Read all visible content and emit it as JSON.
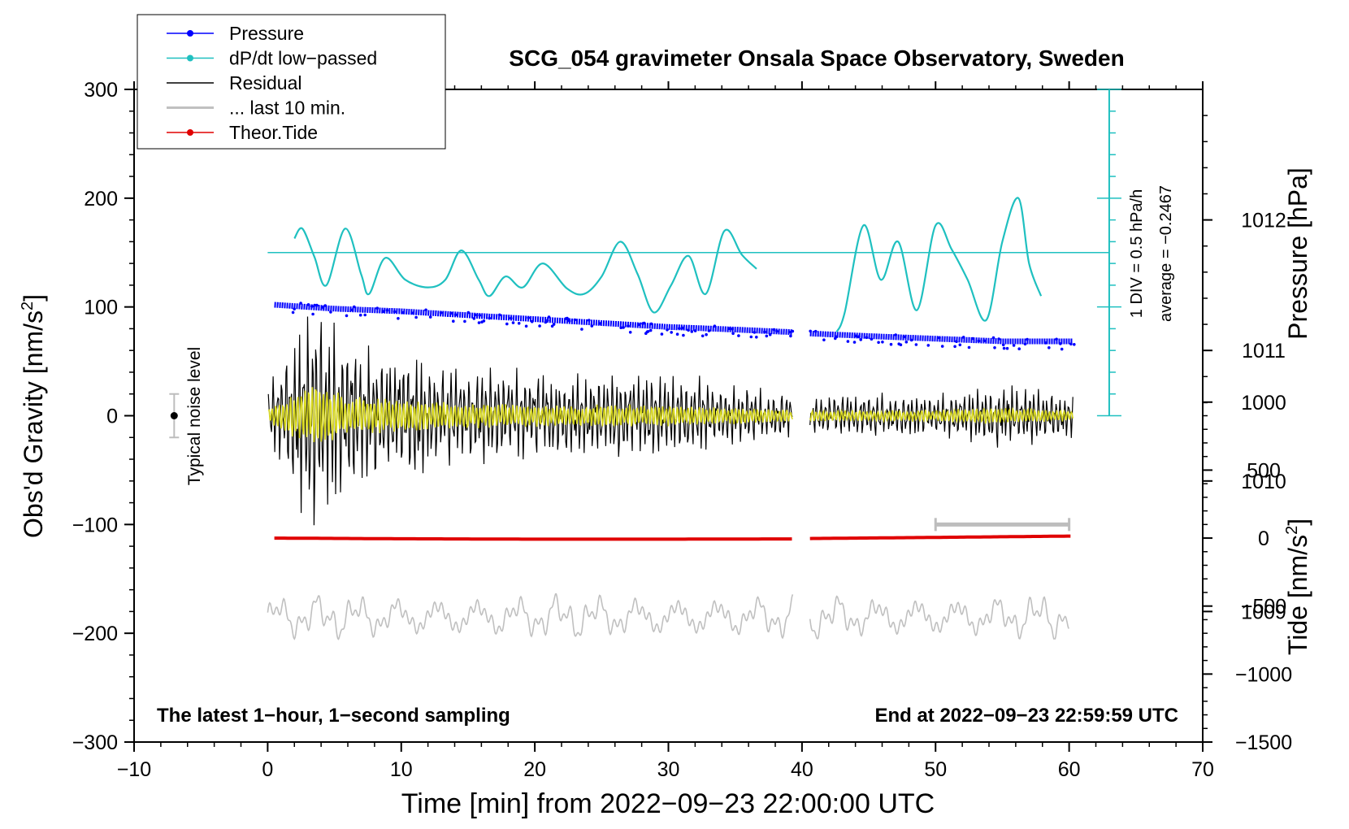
{
  "chart_data": {
    "type": "line",
    "title": "SCG_054 gravimeter Onsala Space Observatory, Sweden",
    "xlabel": "Time [min] from 2022−09−23 22:00:00 UTC",
    "ylabel_left": "Obs'd Gravity [nm/s",
    "ylabel_left_sup": "2",
    "ylabel_left_end": "]",
    "ylabel_pressure": "Pressure [hPa]",
    "ylabel_tide": "Tide [nm/s",
    "ylabel_tide_sup": "2",
    "ylabel_tide_end": "]",
    "xlim": [
      -10,
      70
    ],
    "ylim": [
      -300,
      300
    ],
    "pressure_axis": {
      "range": [
        1008,
        1013
      ],
      "ticks": [
        "1009",
        "1010",
        "1011",
        "1012"
      ],
      "tick_values": [
        1009,
        1010,
        1011,
        1012
      ]
    },
    "tide_axis": {
      "range": [
        -1500,
        3300
      ],
      "ticks": [
        "−1500",
        "−1000",
        "−500",
        "0",
        "500",
        "1000"
      ],
      "tick_values": [
        -1500,
        -1000,
        -500,
        0,
        500,
        1000
      ]
    },
    "x_ticks": [
      "−10",
      "0",
      "10",
      "20",
      "30",
      "40",
      "50",
      "60",
      "70"
    ],
    "x_tick_values": [
      -10,
      0,
      10,
      20,
      30,
      40,
      50,
      60,
      70
    ],
    "y_ticks": [
      "−300",
      "−200",
      "−100",
      "0",
      "100",
      "200",
      "300"
    ],
    "y_tick_values": [
      -300,
      -200,
      -100,
      0,
      100,
      200,
      300
    ],
    "legend": [
      {
        "label": "Pressure",
        "color": "#0000ff",
        "marker": true
      },
      {
        "label": "dP/dt low−passed",
        "color": "#1fc0c0",
        "marker": true
      },
      {
        "label": "Residual",
        "color": "#000000",
        "marker": false
      },
      {
        "label": "... last 10 min.",
        "color": "#c0c0c0",
        "marker": false
      },
      {
        "label": "Theor.Tide",
        "color": "#e00000",
        "marker": true
      }
    ],
    "annotations": {
      "noise": "Typical noise level",
      "bottom_left": "The latest 1−hour, 1−second sampling",
      "bottom_right": "End at 2022−09−23 22:59:59 UTC",
      "div_label": "1 DIV = 0.5 hPa/h",
      "average_label": "average = −0.2467"
    },
    "noise_level": {
      "x": -7,
      "value": 0,
      "range": 20
    },
    "last10_marker": {
      "x_start": 50,
      "x_end": 60,
      "value": -100
    },
    "dpdt_baseline": 150,
    "series": [
      {
        "name": "Pressure",
        "units": "hPa",
        "color": "#0000ff",
        "segments": [
          {
            "x": [
              0.5,
              5,
              10,
              15,
              20,
              25,
              30,
              35,
              39.3
            ],
            "values": [
              1011.35,
              1011.32,
              1011.3,
              1011.27,
              1011.24,
              1011.21,
              1011.18,
              1011.16,
              1011.14
            ]
          },
          {
            "x": [
              40.6,
              45,
              50,
              55,
              60.3
            ],
            "values": [
              1011.13,
              1011.11,
              1011.09,
              1011.07,
              1011.07
            ]
          }
        ]
      },
      {
        "name": "dP/dt low-passed",
        "units": "nm/s2 (display)",
        "color": "#1fc0c0",
        "segments": [
          {
            "x": [
              2,
              2.6,
              3.5,
              4.4,
              5.8,
              7.0,
              7.6,
              8.8,
              10.3,
              12.0,
              13.3,
              14.5,
              15.8,
              16.6,
              17.8,
              19.1,
              20.6,
              22.4,
              23.7,
              25.0,
              26.4,
              27.7,
              28.9,
              30.2,
              31.5,
              32.8,
              34.2,
              35.5,
              36.6
            ],
            "values": [
              163,
              172,
              146,
              120,
              172,
              130,
              112,
              145,
              125,
              118,
              125,
              152,
              125,
              110,
              128,
              118,
              140,
              117,
              112,
              128,
              160,
              130,
              95,
              120,
              147,
              112,
              170,
              148,
              135
            ]
          },
          {
            "x": [
              42.6,
              43.2,
              44.6,
              45.9,
              47.2,
              48.6,
              50.0,
              51.2,
              52.4,
              53.8,
              55.0,
              56.2,
              57.0,
              57.9
            ],
            "values": [
              77,
              95,
              175,
              125,
              160,
              97,
              175,
              153,
              125,
              88,
              160,
              200,
              140,
              110
            ]
          }
        ]
      },
      {
        "name": "Residual",
        "units": "nm/s2",
        "color": "#000000",
        "segments": [
          {
            "x": [
              0,
              60
            ],
            "amplitude_profile_x": [
              0,
              2,
              3.5,
              6,
              10,
              14,
              20,
              30,
              39.3
            ],
            "amplitude_profile_values": [
              25,
              80,
              110,
              70,
              60,
              45,
              40,
              40,
              20
            ]
          },
          {
            "x": [
              40.6,
              60.3
            ],
            "amplitude_profile_x": [
              40.6,
              50,
              55,
              60.3
            ],
            "amplitude_profile_values": [
              20,
              20,
              30,
              20
            ]
          }
        ]
      },
      {
        "name": "Residual smoothed",
        "units": "nm/s2",
        "color": "#d8d820",
        "segments": [
          {
            "x": [
              0,
              39.3
            ]
          },
          {
            "x": [
              40.6,
              60.3
            ]
          }
        ]
      },
      {
        "name": "... last 10 min.",
        "units": "nm/s2",
        "color": "#c0c0c0",
        "segments": [
          {
            "x": [
              0,
              39.3
            ],
            "center": -185,
            "amplitude_range": [
              -210,
              -155
            ]
          },
          {
            "x": [
              40.6,
              60
            ],
            "center": -185,
            "amplitude_range": [
              -205,
              -160
            ]
          }
        ]
      },
      {
        "name": "Theor.Tide",
        "units": "nm/s2",
        "color": "#e00000",
        "segments": [
          {
            "x": [
              0.5,
              10,
              20,
              30,
              39.3
            ],
            "values": [
              0,
              -5,
              -8,
              -8,
              -6
            ]
          },
          {
            "x": [
              40.6,
              50,
              60.3
            ],
            "values": [
              -3,
              5,
              15
            ]
          }
        ]
      }
    ]
  }
}
